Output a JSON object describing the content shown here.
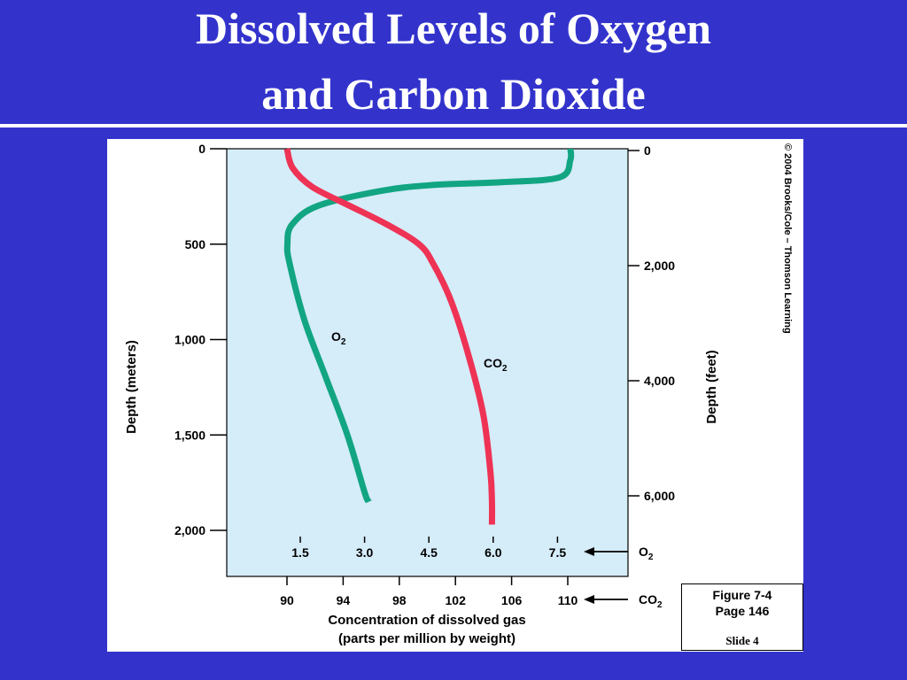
{
  "slide": {
    "title_line1": "Dissolved Levels of Oxygen",
    "title_line2": "and Carbon Dioxide",
    "copyright": "© 2004 Brooks/Cole – Thomson Learning",
    "figure_label": "Figure 7-4",
    "page_label": "Page 146",
    "slide_label": "Slide 4"
  },
  "chart_data": {
    "type": "line",
    "y_left": {
      "label": "Depth (meters)",
      "ticks": [
        "0",
        "500",
        "1,000",
        "1,500",
        "2,000"
      ],
      "tick_values": [
        0,
        500,
        1000,
        1500,
        2000
      ],
      "range": [
        0,
        2000
      ]
    },
    "y_right": {
      "label": "Depth (feet)",
      "ticks": [
        "0",
        "2,000",
        "4,000",
        "6,000"
      ],
      "tick_values": [
        0,
        2000,
        4000,
        6000
      ]
    },
    "x_o2": {
      "label": "O2",
      "ticks": [
        "1.5",
        "3.0",
        "4.5",
        "6.0",
        "7.5"
      ],
      "tick_values": [
        1.5,
        3.0,
        4.5,
        6.0,
        7.5
      ]
    },
    "x_co2": {
      "label": "CO2",
      "ticks": [
        "90",
        "94",
        "98",
        "102",
        "106",
        "110"
      ],
      "tick_values": [
        90,
        94,
        98,
        102,
        106,
        110
      ]
    },
    "xlabel_line1": "Concentration of dissolved gas",
    "xlabel_line2": "(parts per million by weight)",
    "grid": false,
    "series": [
      {
        "name": "O2",
        "axis": "x_o2",
        "color": "#12a582",
        "points": [
          [
            7.8,
            0
          ],
          [
            7.8,
            60
          ],
          [
            7.55,
            150
          ],
          [
            6.2,
            175
          ],
          [
            4.6,
            190
          ],
          [
            3.4,
            220
          ],
          [
            1.9,
            300
          ],
          [
            1.3,
            400
          ],
          [
            1.2,
            500
          ],
          [
            1.25,
            600
          ],
          [
            1.6,
            900
          ],
          [
            2.1,
            1200
          ],
          [
            2.6,
            1500
          ],
          [
            3.0,
            1800
          ],
          [
            3.1,
            1850
          ]
        ]
      },
      {
        "name": "CO2",
        "axis": "x_co2",
        "color": "#ee3355",
        "points": [
          [
            90,
            0
          ],
          [
            90.4,
            100
          ],
          [
            91.8,
            200
          ],
          [
            94.5,
            300
          ],
          [
            97.2,
            400
          ],
          [
            99.4,
            500
          ],
          [
            100.4,
            600
          ],
          [
            101.7,
            800
          ],
          [
            103.0,
            1100
          ],
          [
            104.0,
            1400
          ],
          [
            104.5,
            1700
          ],
          [
            104.6,
            1850
          ],
          [
            104.6,
            1970
          ]
        ]
      }
    ]
  }
}
